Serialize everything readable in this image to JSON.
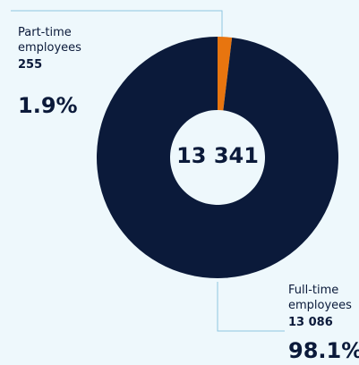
{
  "chart_data": {
    "type": "donut",
    "categories": [
      "Part-time employees",
      "Full-time employees"
    ],
    "values": [
      255,
      13086
    ],
    "value_labels": [
      "255",
      "13 086"
    ],
    "percent_labels": [
      "1.9%",
      "98.1%"
    ],
    "center_label": "13 341",
    "colors": [
      "#e8750f",
      "#0b1a3a"
    ]
  }
}
